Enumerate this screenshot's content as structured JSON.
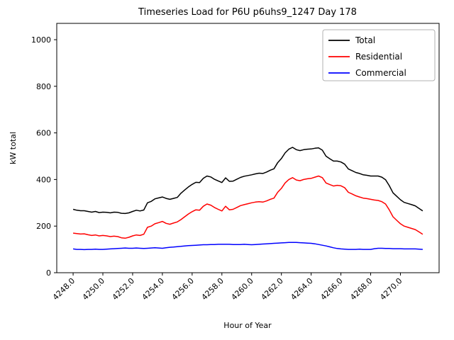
{
  "figure": {
    "title": "Timeseries Load for P6U p6uhs9_1247  Day 178",
    "xlabel": "Hour of Year",
    "ylabel": "kW total"
  },
  "chart_data": {
    "type": "line",
    "title": "Timeseries Load for P6U p6uhs9_1247  Day 178",
    "xlabel": "Hour of Year",
    "ylabel": "kW total",
    "xlim": [
      4246.9,
      4272.6
    ],
    "ylim": [
      0,
      1070
    ],
    "xticks": [
      4248,
      4250,
      4252,
      4254,
      4256,
      4258,
      4260,
      4262,
      4264,
      4266,
      4268,
      4270
    ],
    "xtick_labels": [
      "4248.0",
      "4250.0",
      "4252.0",
      "4254.0",
      "4256.0",
      "4258.0",
      "4260.0",
      "4262.0",
      "4264.0",
      "4266.0",
      "4268.0",
      "4270.0"
    ],
    "yticks": [
      0,
      200,
      400,
      600,
      800,
      1000
    ],
    "ytick_labels": [
      "0",
      "200",
      "400",
      "600",
      "800",
      "1000"
    ],
    "legend_position": "upper right",
    "grid": false,
    "x_start": 4248.0,
    "x_step": 0.25,
    "x_end": 4271.5,
    "series": [
      {
        "name": "Total",
        "color": "#000000",
        "values": [
          272,
          268,
          266,
          266,
          263,
          260,
          263,
          258,
          260,
          259,
          257,
          260,
          259,
          255,
          254,
          257,
          263,
          268,
          265,
          269,
          300,
          306,
          317,
          321,
          325,
          319,
          315,
          319,
          323,
          341,
          355,
          368,
          379,
          388,
          387,
          405,
          415,
          411,
          401,
          394,
          387,
          407,
          392,
          393,
          401,
          409,
          414,
          417,
          420,
          424,
          427,
          426,
          432,
          440,
          446,
          472,
          490,
          514,
          530,
          538,
          528,
          524,
          528,
          530,
          531,
          534,
          536,
          526,
          500,
          489,
          479,
          479,
          475,
          466,
          445,
          438,
          430,
          426,
          420,
          418,
          415,
          415,
          415,
          410,
          399,
          374,
          343,
          328,
          313,
          302,
          297,
          292,
          287,
          276,
          265
        ]
      },
      {
        "name": "Residential",
        "color": "#ff0000",
        "values": [
          170,
          168,
          166,
          167,
          163,
          160,
          162,
          158,
          160,
          158,
          155,
          157,
          155,
          150,
          148,
          152,
          158,
          162,
          160,
          165,
          195,
          200,
          210,
          215,
          220,
          212,
          208,
          213,
          218,
          228,
          240,
          252,
          262,
          270,
          268,
          285,
          295,
          290,
          280,
          272,
          265,
          285,
          270,
          272,
          280,
          288,
          292,
          296,
          300,
          303,
          305,
          303,
          308,
          315,
          320,
          345,
          362,
          385,
          400,
          408,
          398,
          395,
          400,
          403,
          405,
          410,
          415,
          408,
          385,
          378,
          372,
          375,
          373,
          365,
          345,
          338,
          330,
          325,
          320,
          318,
          315,
          312,
          310,
          305,
          295,
          270,
          240,
          225,
          210,
          200,
          195,
          190,
          185,
          175,
          165
        ]
      },
      {
        "name": "Commercial",
        "color": "#0000ff",
        "values": [
          102,
          100,
          100,
          99,
          100,
          100,
          101,
          100,
          100,
          101,
          102,
          103,
          104,
          105,
          106,
          105,
          105,
          106,
          105,
          104,
          105,
          106,
          107,
          106,
          105,
          107,
          109,
          110,
          112,
          113,
          115,
          116,
          117,
          118,
          119,
          120,
          120,
          121,
          121,
          122,
          122,
          122,
          122,
          121,
          121,
          121,
          122,
          121,
          120,
          121,
          122,
          123,
          124,
          125,
          126,
          127,
          128,
          129,
          130,
          130,
          130,
          129,
          128,
          127,
          126,
          124,
          121,
          118,
          115,
          111,
          107,
          104,
          102,
          101,
          100,
          100,
          100,
          101,
          100,
          100,
          100,
          103,
          105,
          105,
          104,
          104,
          103,
          103,
          103,
          102,
          102,
          102,
          102,
          101,
          100
        ]
      }
    ]
  }
}
